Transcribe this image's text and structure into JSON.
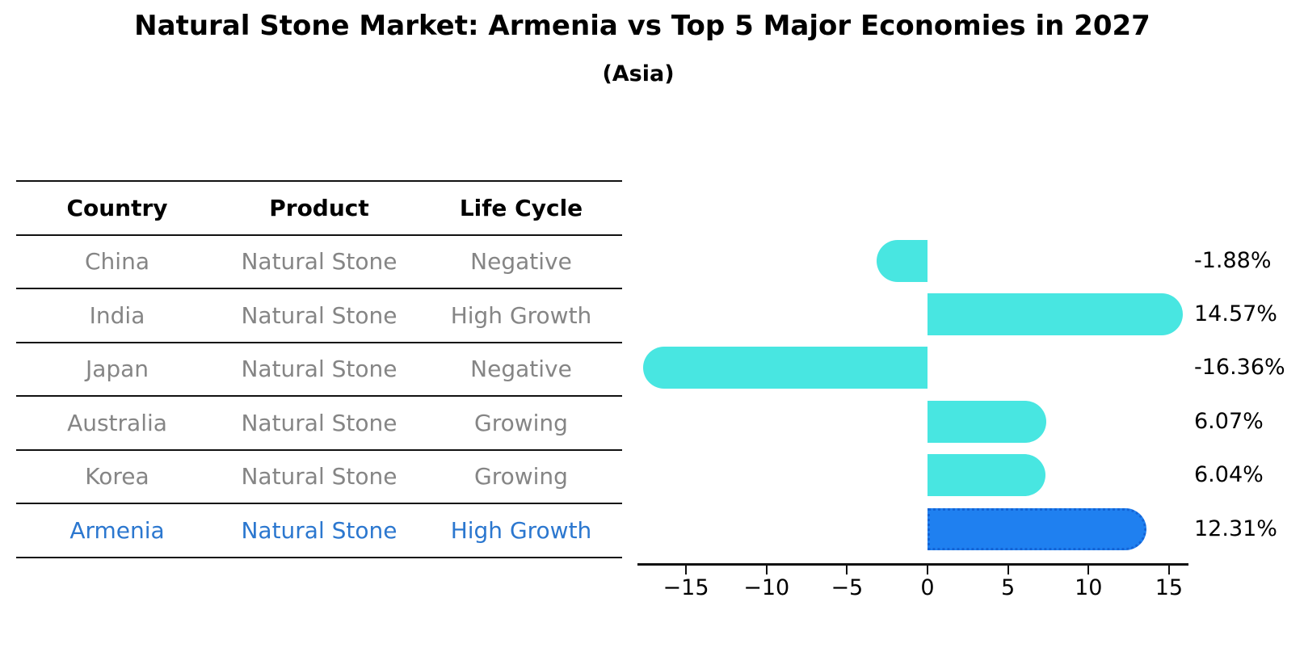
{
  "title": "Natural Stone Market: Armenia vs Top 5 Major Economies in 2027",
  "subtitle": "(Asia)",
  "table": {
    "headers": [
      "Country",
      "Product",
      "Life Cycle"
    ],
    "rows": [
      {
        "country": "China",
        "product": "Natural Stone",
        "life_cycle": "Negative",
        "highlight": false
      },
      {
        "country": "India",
        "product": "Natural Stone",
        "life_cycle": "High Growth",
        "highlight": false
      },
      {
        "country": "Japan",
        "product": "Natural Stone",
        "life_cycle": "Negative",
        "highlight": false
      },
      {
        "country": "Australia",
        "product": "Natural Stone",
        "life_cycle": "Growing",
        "highlight": false
      },
      {
        "country": "Korea",
        "product": "Natural Stone",
        "life_cycle": "Growing",
        "highlight": false
      },
      {
        "country": "Armenia",
        "product": "Natural Stone",
        "life_cycle": "High Growth",
        "highlight": true
      }
    ]
  },
  "chart_data": {
    "type": "bar",
    "orientation": "horizontal",
    "title": "Natural Stone Market: Armenia vs Top 5 Major Economies in 2027",
    "subtitle": "(Asia)",
    "categories": [
      "China",
      "India",
      "Japan",
      "Australia",
      "Korea",
      "Armenia"
    ],
    "values": [
      -1.88,
      14.57,
      -16.36,
      6.07,
      6.04,
      12.31
    ],
    "value_labels": [
      "-1.88%",
      "14.57%",
      "-16.36%",
      "6.07%",
      "6.04%",
      "12.31%"
    ],
    "unit": "%",
    "x_tick_labels": [
      "−15",
      "−10",
      "−5",
      "0",
      "5",
      "10",
      "15"
    ],
    "x_tick_values": [
      -15,
      -10,
      -5,
      0,
      5,
      10,
      15
    ],
    "xlim": [
      -18,
      16.1
    ],
    "grid": false,
    "legend": null,
    "highlight_index": 5,
    "bar_color": "#48e6e1",
    "highlight_color": "#1f80f0",
    "highlight_border_color": "#1464d6",
    "axis_color": "#111111",
    "label_color": "#000000"
  }
}
